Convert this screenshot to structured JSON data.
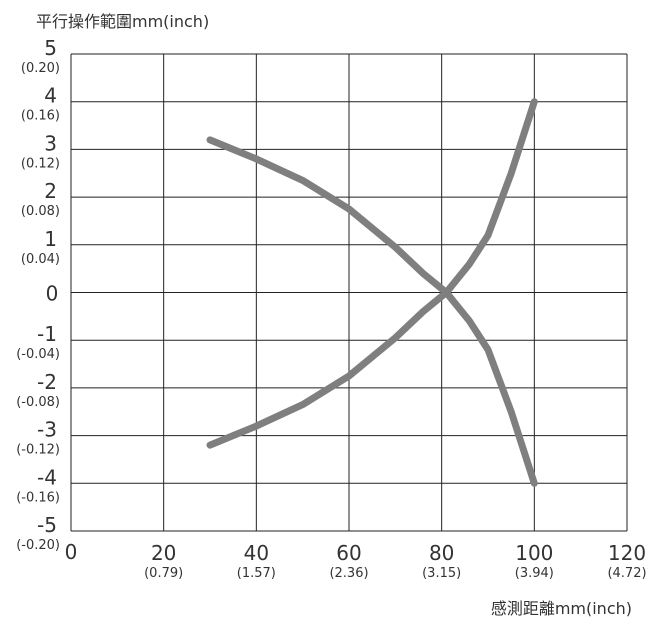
{
  "chart_data": {
    "type": "line",
    "ylabel": "平行操作範圍mm(inch)",
    "xlabel": "感測距離mm(inch)",
    "xlim": [
      0,
      120
    ],
    "ylim": [
      -5,
      5
    ],
    "grid": true,
    "x_ticks": [
      {
        "value": 0,
        "label": "0",
        "sub": ""
      },
      {
        "value": 20,
        "label": "20",
        "sub": "(0.79)"
      },
      {
        "value": 40,
        "label": "40",
        "sub": "(1.57)"
      },
      {
        "value": 60,
        "label": "60",
        "sub": "(2.36)"
      },
      {
        "value": 80,
        "label": "80",
        "sub": "(3.15)"
      },
      {
        "value": 100,
        "label": "100",
        "sub": "(3.94)"
      },
      {
        "value": 120,
        "label": "120",
        "sub": "(4.72)"
      }
    ],
    "y_ticks": [
      {
        "value": 5,
        "label": "5",
        "sub": "(0.20)"
      },
      {
        "value": 4,
        "label": "4",
        "sub": "(0.16)"
      },
      {
        "value": 3,
        "label": "3",
        "sub": "(0.12)"
      },
      {
        "value": 2,
        "label": "2",
        "sub": "(0.08)"
      },
      {
        "value": 1,
        "label": "1",
        "sub": "(0.04)"
      },
      {
        "value": 0,
        "label": "0",
        "sub": ""
      },
      {
        "value": -1,
        "label": "-1",
        "sub": "(-0.04)"
      },
      {
        "value": -2,
        "label": "-2",
        "sub": "(-0.08)"
      },
      {
        "value": -3,
        "label": "-3",
        "sub": "(-0.12)"
      },
      {
        "value": -4,
        "label": "-4",
        "sub": "(-0.16)"
      },
      {
        "value": -5,
        "label": "-5",
        "sub": "(-0.20)"
      }
    ],
    "series": [
      {
        "color": "#7f7f7f",
        "points": [
          [
            30,
            3.2
          ],
          [
            40,
            2.8
          ],
          [
            50,
            2.35
          ],
          [
            60,
            1.75
          ],
          [
            70,
            0.95
          ],
          [
            76,
            0.4
          ],
          [
            81,
            0.0
          ],
          [
            86,
            -0.6
          ],
          [
            90,
            -1.2
          ],
          [
            95,
            -2.5
          ],
          [
            100,
            -4.0
          ]
        ]
      },
      {
        "color": "#7f7f7f",
        "points": [
          [
            30,
            -3.2
          ],
          [
            40,
            -2.8
          ],
          [
            50,
            -2.35
          ],
          [
            60,
            -1.75
          ],
          [
            70,
            -0.95
          ],
          [
            76,
            -0.4
          ],
          [
            81,
            0.0
          ],
          [
            86,
            0.6
          ],
          [
            90,
            1.2
          ],
          [
            95,
            2.5
          ],
          [
            100,
            4.0
          ]
        ]
      }
    ]
  }
}
